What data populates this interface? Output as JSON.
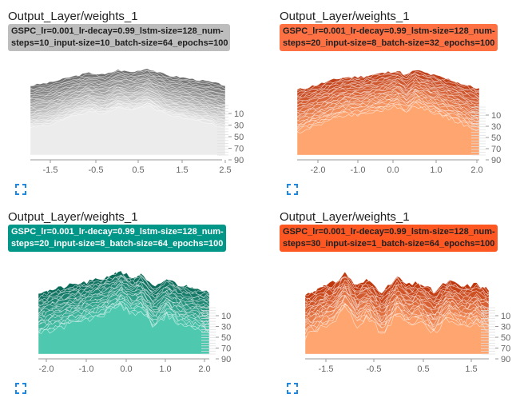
{
  "cards": [
    {
      "title": "Output_Layer/weights_1",
      "run_tag": "GSPC_lr=0.001_lr-decay=0.99_lstm-size=128_num-\nsteps=10_input-size=10_batch-size=64_epochs=100",
      "tag_bg": "#bdbdbd",
      "tag_fg": "#212121",
      "dark": "#6e6e6e",
      "light": "#ececec",
      "x_ticks": [
        "-1.5",
        "-0.5",
        "0.5",
        "1.5",
        "2.5"
      ],
      "y_ticks": [
        "10",
        "30",
        "50",
        "70",
        "90"
      ],
      "icon": "fullscreen-icon"
    },
    {
      "title": "Output_Layer/weights_1",
      "run_tag": "GSPC_lr=0.001_lr-decay=0.99_lstm-size=128_num-\nsteps=20_input-size=8_batch-size=32_epochs=100",
      "tag_bg": "#ff7043",
      "tag_fg": "#212121",
      "dark": "#c1401a",
      "light": "#ffa570",
      "x_ticks": [
        "-2.0",
        "-1.0",
        "0.0",
        "1.0",
        "2.0"
      ],
      "y_ticks": [
        "10",
        "30",
        "50",
        "70",
        "90"
      ],
      "icon": "fullscreen-icon"
    },
    {
      "title": "Output_Layer/weights_1",
      "run_tag": "GSPC_lr=0.001_lr-decay=0.99_lstm-size=128_num-\nsteps=20_input-size=8_batch-size=64_epochs=100",
      "tag_bg": "#009688",
      "tag_fg": "#ffffff",
      "dark": "#0b6b5a",
      "light": "#4ec9b0",
      "x_ticks": [
        "-2.0",
        "-1.0",
        "0.0",
        "1.0",
        "2.0"
      ],
      "y_ticks": [
        "10",
        "30",
        "50",
        "70",
        "90"
      ],
      "icon": "fullscreen-icon"
    },
    {
      "title": "Output_Layer/weights_1",
      "run_tag": "GSPC_lr=0.001_lr-decay=0.99_lstm-size=128_num-\nsteps=30_input-size=1_batch-size=64_epochs=100",
      "tag_bg": "#ff5722",
      "tag_fg": "#212121",
      "dark": "#bf360c",
      "light": "#ffa570",
      "x_ticks": [
        "-1.5",
        "-0.5",
        "0.5",
        "1.5"
      ],
      "y_ticks": [
        "10",
        "30",
        "50",
        "70",
        "90"
      ],
      "icon": "fullscreen-icon"
    }
  ]
}
